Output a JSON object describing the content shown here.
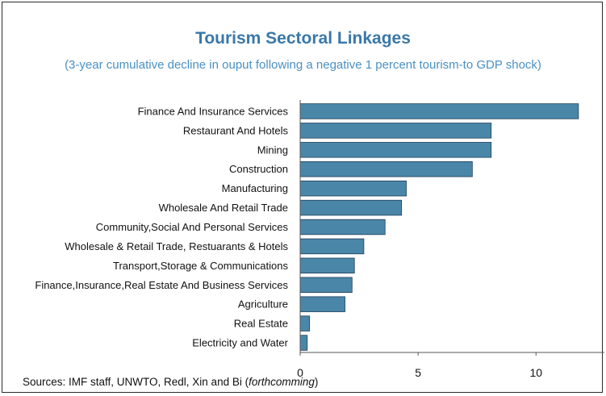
{
  "chart_data": {
    "type": "bar",
    "orientation": "horizontal",
    "title": "Tourism Sectoral Linkages",
    "subtitle": "(3-year cumulative decline in ouput following a negative 1 percent tourism-to GDP shock)",
    "categories": [
      "Finance And Insurance  Services",
      "Restaurant And Hotels",
      "Mining",
      "Construction",
      "Manufacturing",
      "Wholesale And Retail Trade",
      "Community,Social And Personal Services",
      "Wholesale & Retail Trade, Restuarants & Hotels",
      "Transport,Storage & Communications",
      "Finance,Insurance,Real Estate And Business Services",
      "Agriculture",
      "Real Estate",
      "Electricity and Water"
    ],
    "values": [
      11.8,
      8.1,
      8.1,
      7.3,
      4.5,
      4.3,
      3.6,
      2.7,
      2.3,
      2.2,
      1.9,
      0.4,
      0.3
    ],
    "xlim": [
      0,
      12.9
    ],
    "xticks": [
      0,
      5,
      10
    ],
    "xtick_labels": [
      "0",
      "5",
      "10"
    ],
    "bar_color": "#4a86a8",
    "bar_edge_color": "#1f3f5a",
    "grid": false,
    "legend": "none"
  },
  "source": {
    "prefix": "Sources:  IMF staff, UNWTO, Redl, Xin and Bi (",
    "italic": "forthcomming",
    "suffix": ")"
  }
}
